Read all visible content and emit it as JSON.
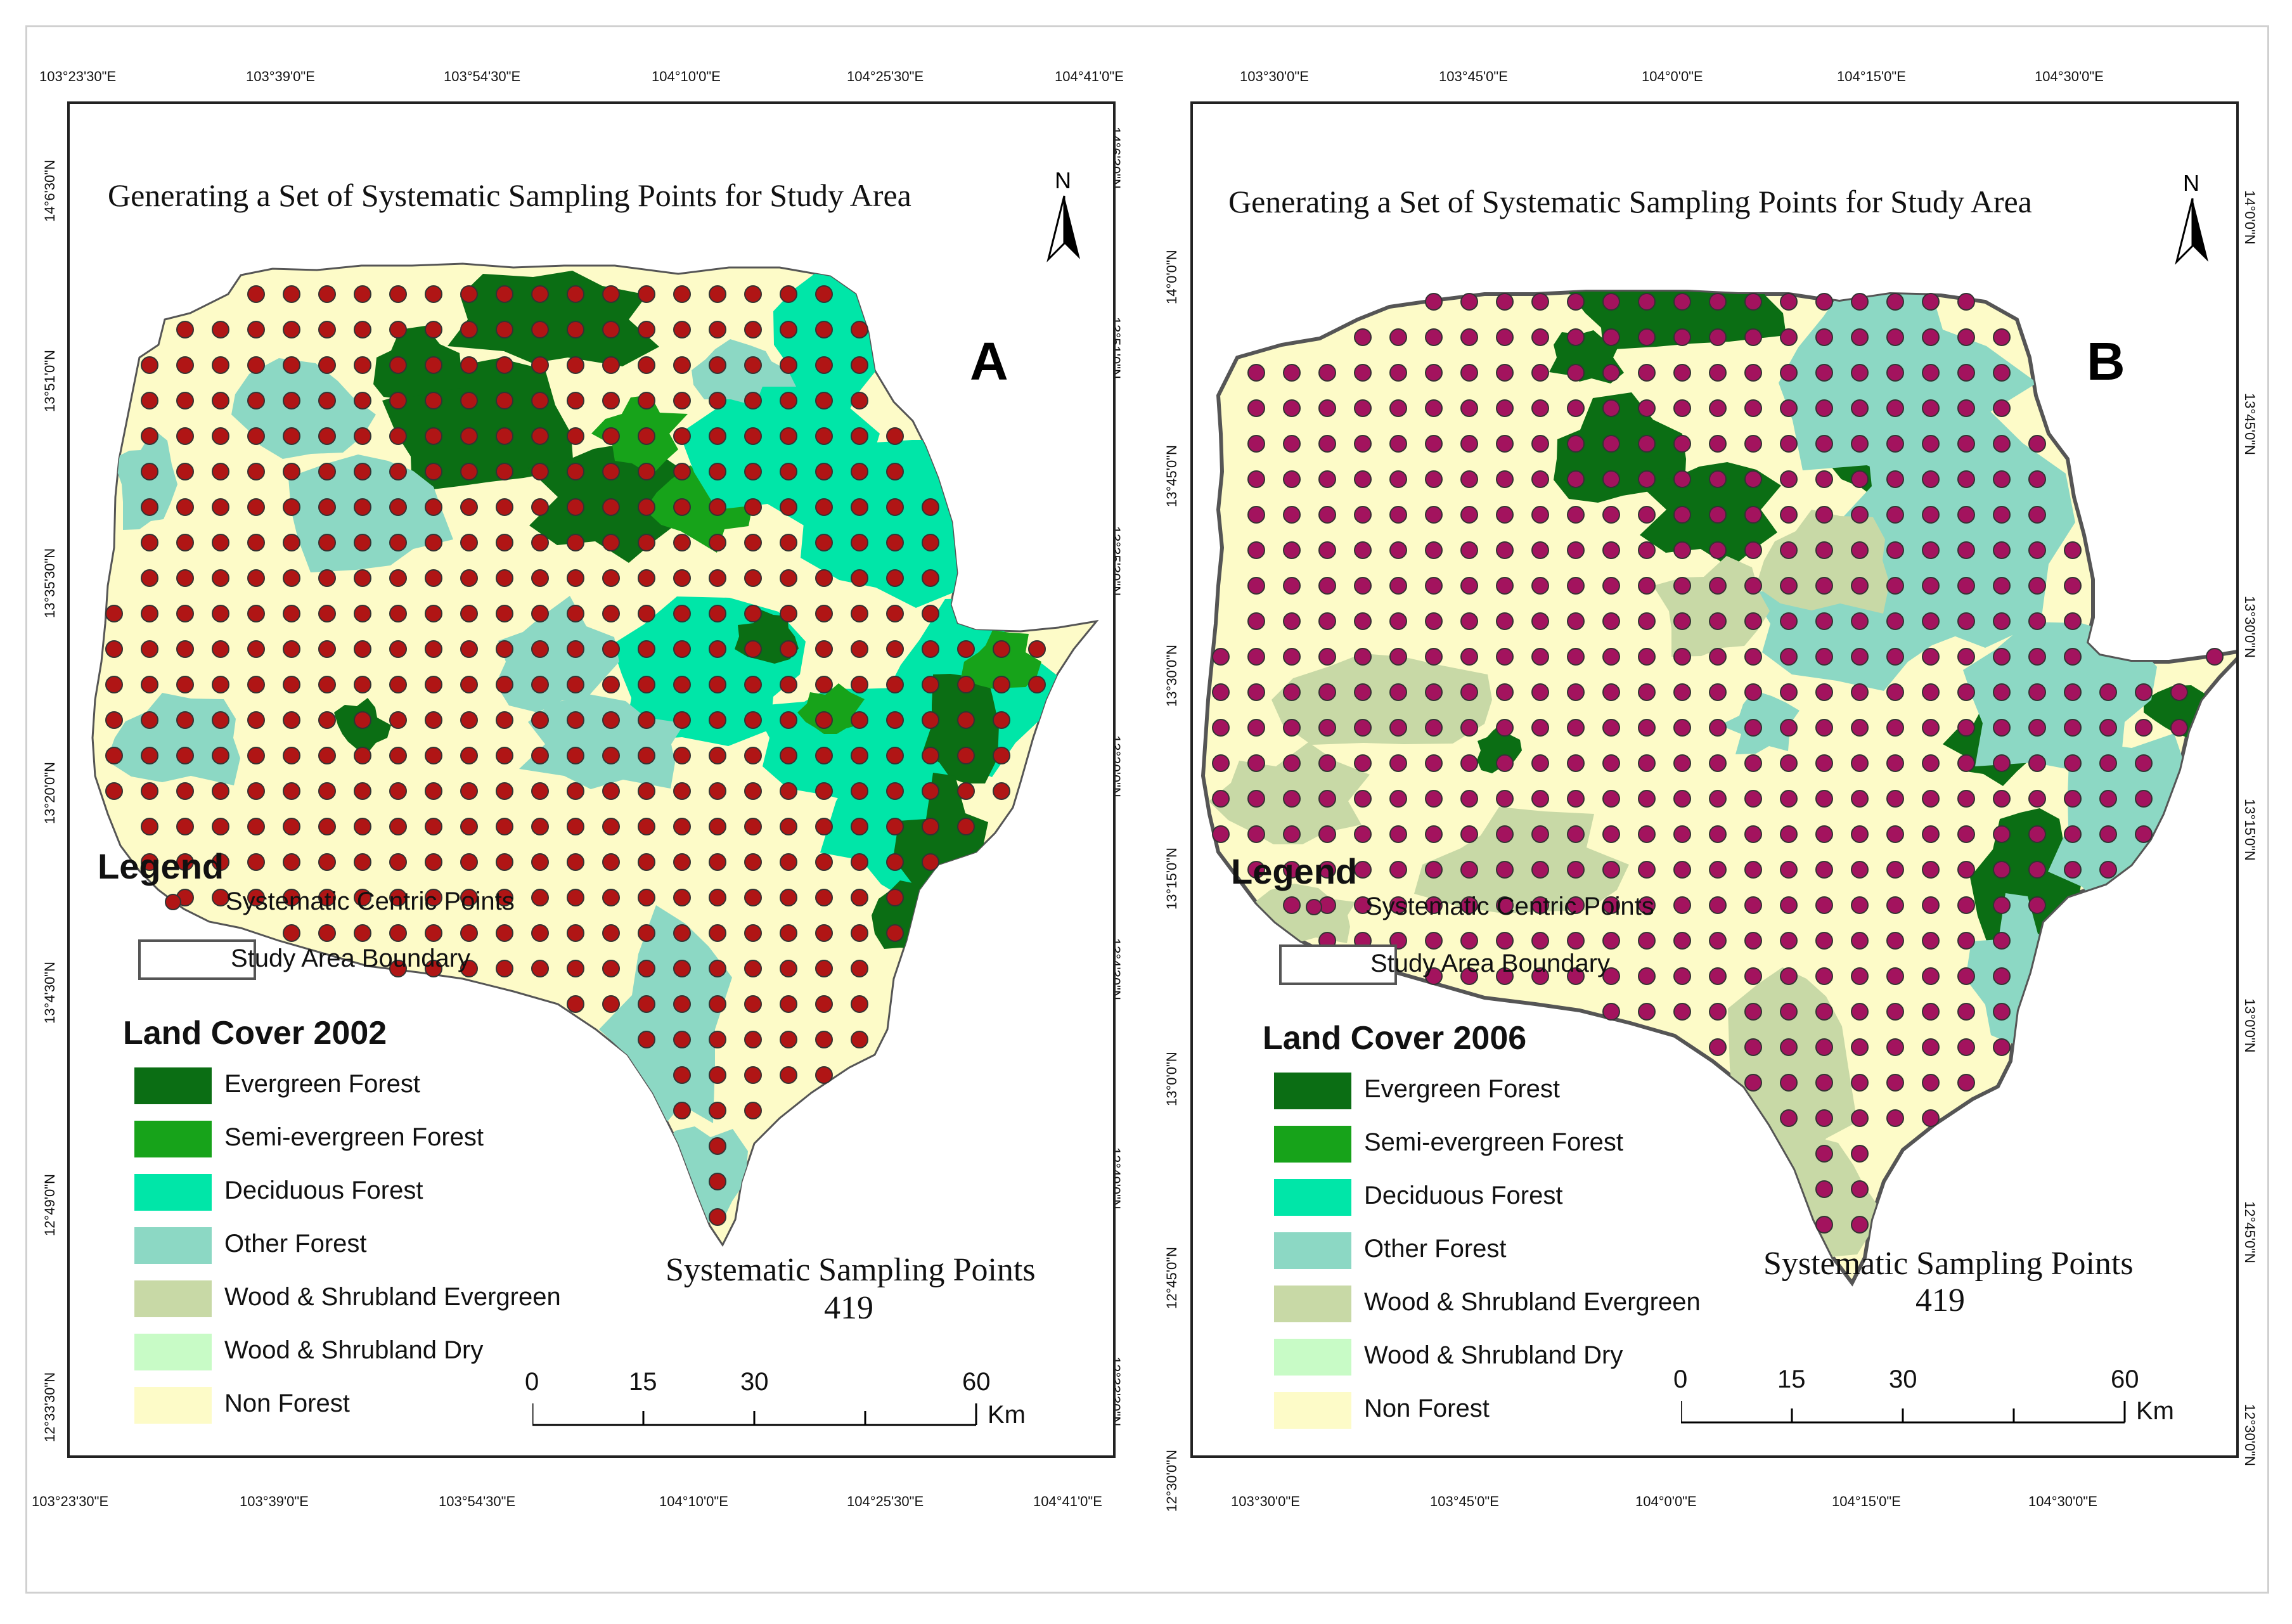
{
  "colors": {
    "evergreen": "#0b6e14",
    "semi_evergreen": "#17a31a",
    "deciduous": "#00e6a8",
    "other_forest": "#8cd8c4",
    "wood_shrub_evergreen": "#c8d9a6",
    "wood_shrub_dry": "#c8fbc6",
    "non_forest": "#fdfbc8",
    "point_a": "#b01515",
    "point_b": "#a3135e"
  },
  "panels": [
    {
      "id": "A",
      "title": "Generating a Set of  Systematic Sampling Points for Study Area",
      "letter": "A",
      "north": "N",
      "top_coords": [
        "103°23'30\"E",
        "103°39'0\"E",
        "103°54'30\"E",
        "104°10'0\"E",
        "104°25'30\"E",
        "104°41'0\"E"
      ],
      "bottom_coords": [
        "103°23'30\"E",
        "103°39'0\"E",
        "103°54'30\"E",
        "104°10'0\"E",
        "104°25'30\"E",
        "104°41'0\"E"
      ],
      "left_coords": [
        "14°6'30\"N",
        "13°51'0\"N",
        "13°35'30\"N",
        "13°20'0\"N",
        "13°4'30\"N",
        "12°49'0\"N",
        "12°33'30\"N"
      ],
      "right_coords": [
        "14°6'30\"N",
        "13°51'0\"N",
        "13°35'30\"N",
        "13°20'0\"N",
        "13°4'30\"N",
        "12°49'0\"N",
        "12°33'30\"N"
      ],
      "legend": {
        "title": "Legend",
        "points_label": "Systematic Centric Points",
        "boundary_label": "Study Area Boundary",
        "land_cover_title": "Land Cover 2002",
        "classes": [
          "Evergreen Forest",
          "Semi-evergreen Forest",
          "Deciduous Forest",
          "Other Forest",
          "Wood & Shrubland Evergreen",
          "Wood & Shrubland Dry",
          "Non Forest"
        ]
      },
      "sampling_title": "Systematic Sampling Points",
      "sampling_count": "419",
      "scale": {
        "ticks": [
          "0",
          "15",
          "30",
          "60"
        ],
        "unit": "Km"
      }
    },
    {
      "id": "B",
      "title": "Generating a Set of  Systematic Sampling Points for Study Area",
      "letter": "B",
      "north": "N",
      "top_coords": [
        "103°30'0\"E",
        "103°45'0\"E",
        "104°0'0\"E",
        "104°15'0\"E",
        "104°30'0\"E"
      ],
      "bottom_coords": [
        "103°30'0\"E",
        "103°45'0\"E",
        "104°0'0\"E",
        "104°15'0\"E",
        "104°30'0\"E"
      ],
      "left_coords": [
        "14°0'0\"N",
        "13°45'0\"N",
        "13°30'0\"N",
        "13°15'0\"N",
        "13°0'0\"N",
        "12°45'0\"N",
        "12°30'0\"N"
      ],
      "right_coords": [
        "14°0'0\"N",
        "13°45'0\"N",
        "13°30'0\"N",
        "13°15'0\"N",
        "13°0'0\"N",
        "12°45'0\"N",
        "12°30'0\"N"
      ],
      "legend": {
        "title": "Legend",
        "points_label": "Systematic Centric Points",
        "boundary_label": "Study Area Boundary",
        "land_cover_title": "Land Cover 2006",
        "classes": [
          "Evergreen Forest",
          "Semi-evergreen Forest",
          "Deciduous Forest",
          "Other Forest",
          "Wood & Shrubland Evergreen",
          "Wood & Shrubland Dry",
          "Non Forest"
        ]
      },
      "sampling_title": "Systematic Sampling Points",
      "sampling_count": "419",
      "scale": {
        "ticks": [
          "0",
          "15",
          "30",
          "60"
        ],
        "unit": "Km"
      }
    }
  ]
}
